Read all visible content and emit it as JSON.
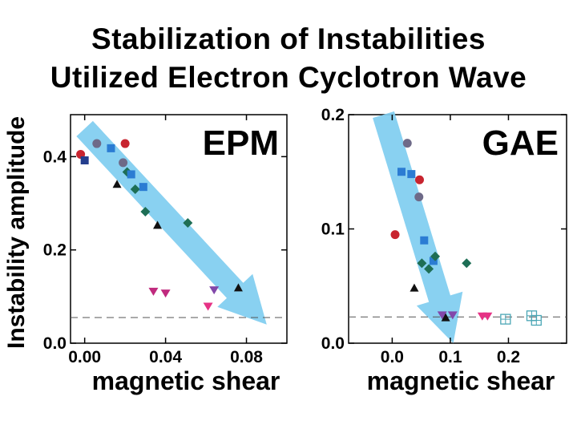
{
  "title_line1": "Stabilization of Instabilities",
  "title_line2": "Utilized Electron Cyclotron Wave",
  "ylabel": "Instability amplitude",
  "colors": {
    "red": "#c8242f",
    "navy": "#243e8e",
    "blue": "#2b7cd3",
    "purple": "#6e6a88",
    "green": "#1e6e55",
    "black": "#111111",
    "magenta": "#c02a7e",
    "violet": "#8248aa",
    "pink": "#e63285",
    "teal": "#4aa6b5",
    "arrow": "#7fcdf0"
  },
  "chart_data": [
    {
      "type": "scatter",
      "panel_label": "EPM",
      "xlabel": "magnetic shear",
      "ylabel": "Instability amplitude",
      "xlim": [
        -0.007,
        0.1
      ],
      "ylim": [
        0,
        0.49
      ],
      "xticks": [
        0.0,
        0.04,
        0.08
      ],
      "xtick_labels": [
        "0.00",
        "0.04",
        "0.08"
      ],
      "yticks": [
        0.0,
        0.2,
        0.4
      ],
      "ytick_labels": [
        "0.0",
        "0.2",
        "0.4"
      ],
      "threshold": 0.055,
      "trend_arrow": {
        "from": [
          0.0,
          0.46
        ],
        "to": [
          0.09,
          0.04
        ]
      },
      "points": [
        {
          "x": -0.002,
          "y": 0.405,
          "marker": "circle",
          "color": "red"
        },
        {
          "x": 0.0,
          "y": 0.392,
          "marker": "square",
          "color": "navy"
        },
        {
          "x": 0.006,
          "y": 0.428,
          "marker": "circle",
          "color": "purple"
        },
        {
          "x": 0.013,
          "y": 0.418,
          "marker": "square",
          "color": "blue"
        },
        {
          "x": 0.02,
          "y": 0.428,
          "marker": "circle",
          "color": "red"
        },
        {
          "x": 0.019,
          "y": 0.387,
          "marker": "circle",
          "color": "purple"
        },
        {
          "x": 0.021,
          "y": 0.367,
          "marker": "diamond",
          "color": "green"
        },
        {
          "x": 0.023,
          "y": 0.362,
          "marker": "square",
          "color": "blue"
        },
        {
          "x": 0.016,
          "y": 0.34,
          "marker": "triangle-up",
          "color": "black"
        },
        {
          "x": 0.025,
          "y": 0.33,
          "marker": "diamond",
          "color": "green"
        },
        {
          "x": 0.029,
          "y": 0.335,
          "marker": "square",
          "color": "blue"
        },
        {
          "x": 0.03,
          "y": 0.282,
          "marker": "diamond",
          "color": "green"
        },
        {
          "x": 0.036,
          "y": 0.252,
          "marker": "triangle-up",
          "color": "black"
        },
        {
          "x": 0.051,
          "y": 0.258,
          "marker": "diamond",
          "color": "green"
        },
        {
          "x": 0.034,
          "y": 0.112,
          "marker": "triangle-down",
          "color": "magenta"
        },
        {
          "x": 0.04,
          "y": 0.108,
          "marker": "triangle-down",
          "color": "magenta"
        },
        {
          "x": 0.064,
          "y": 0.115,
          "marker": "triangle-down",
          "color": "violet"
        },
        {
          "x": 0.061,
          "y": 0.08,
          "marker": "triangle-down",
          "color": "pink"
        },
        {
          "x": 0.076,
          "y": 0.118,
          "marker": "triangle-up",
          "color": "black"
        }
      ]
    },
    {
      "type": "scatter",
      "panel_label": "GAE",
      "xlabel": "magnetic shear",
      "ylabel": "",
      "xlim": [
        -0.075,
        0.3
      ],
      "ylim": [
        0,
        0.2
      ],
      "xticks": [
        0.0,
        0.1,
        0.2
      ],
      "xtick_labels": [
        "0.0",
        "0.1",
        "0.2"
      ],
      "yticks": [
        0.0,
        0.1,
        0.2
      ],
      "ytick_labels": [
        "0.0",
        "0.1",
        "0.2"
      ],
      "threshold": 0.023,
      "trend_arrow": {
        "from": [
          -0.015,
          0.2
        ],
        "to": [
          0.105,
          0.0
        ]
      },
      "points": [
        {
          "x": 0.005,
          "y": 0.095,
          "marker": "circle",
          "color": "red"
        },
        {
          "x": 0.016,
          "y": 0.15,
          "marker": "square",
          "color": "blue"
        },
        {
          "x": 0.026,
          "y": 0.175,
          "marker": "circle",
          "color": "purple"
        },
        {
          "x": 0.033,
          "y": 0.148,
          "marker": "square",
          "color": "blue"
        },
        {
          "x": 0.047,
          "y": 0.143,
          "marker": "circle",
          "color": "red"
        },
        {
          "x": 0.046,
          "y": 0.128,
          "marker": "circle",
          "color": "purple"
        },
        {
          "x": 0.055,
          "y": 0.09,
          "marker": "square",
          "color": "blue"
        },
        {
          "x": 0.038,
          "y": 0.048,
          "marker": "triangle-up",
          "color": "black"
        },
        {
          "x": 0.051,
          "y": 0.07,
          "marker": "diamond",
          "color": "green"
        },
        {
          "x": 0.063,
          "y": 0.065,
          "marker": "diamond",
          "color": "green"
        },
        {
          "x": 0.071,
          "y": 0.072,
          "marker": "square",
          "color": "blue"
        },
        {
          "x": 0.074,
          "y": 0.076,
          "marker": "diamond",
          "color": "green"
        },
        {
          "x": 0.128,
          "y": 0.07,
          "marker": "diamond",
          "color": "green"
        },
        {
          "x": 0.086,
          "y": 0.025,
          "marker": "triangle-down",
          "color": "violet"
        },
        {
          "x": 0.092,
          "y": 0.022,
          "marker": "triangle-up",
          "color": "black"
        },
        {
          "x": 0.104,
          "y": 0.025,
          "marker": "triangle-down",
          "color": "violet"
        },
        {
          "x": 0.155,
          "y": 0.024,
          "marker": "triangle-down",
          "color": "pink"
        },
        {
          "x": 0.164,
          "y": 0.024,
          "marker": "triangle-down",
          "color": "pink"
        },
        {
          "x": 0.195,
          "y": 0.021,
          "marker": "square-open",
          "color": "teal"
        },
        {
          "x": 0.24,
          "y": 0.024,
          "marker": "square-open",
          "color": "teal"
        },
        {
          "x": 0.248,
          "y": 0.02,
          "marker": "square-open",
          "color": "teal"
        }
      ]
    }
  ]
}
